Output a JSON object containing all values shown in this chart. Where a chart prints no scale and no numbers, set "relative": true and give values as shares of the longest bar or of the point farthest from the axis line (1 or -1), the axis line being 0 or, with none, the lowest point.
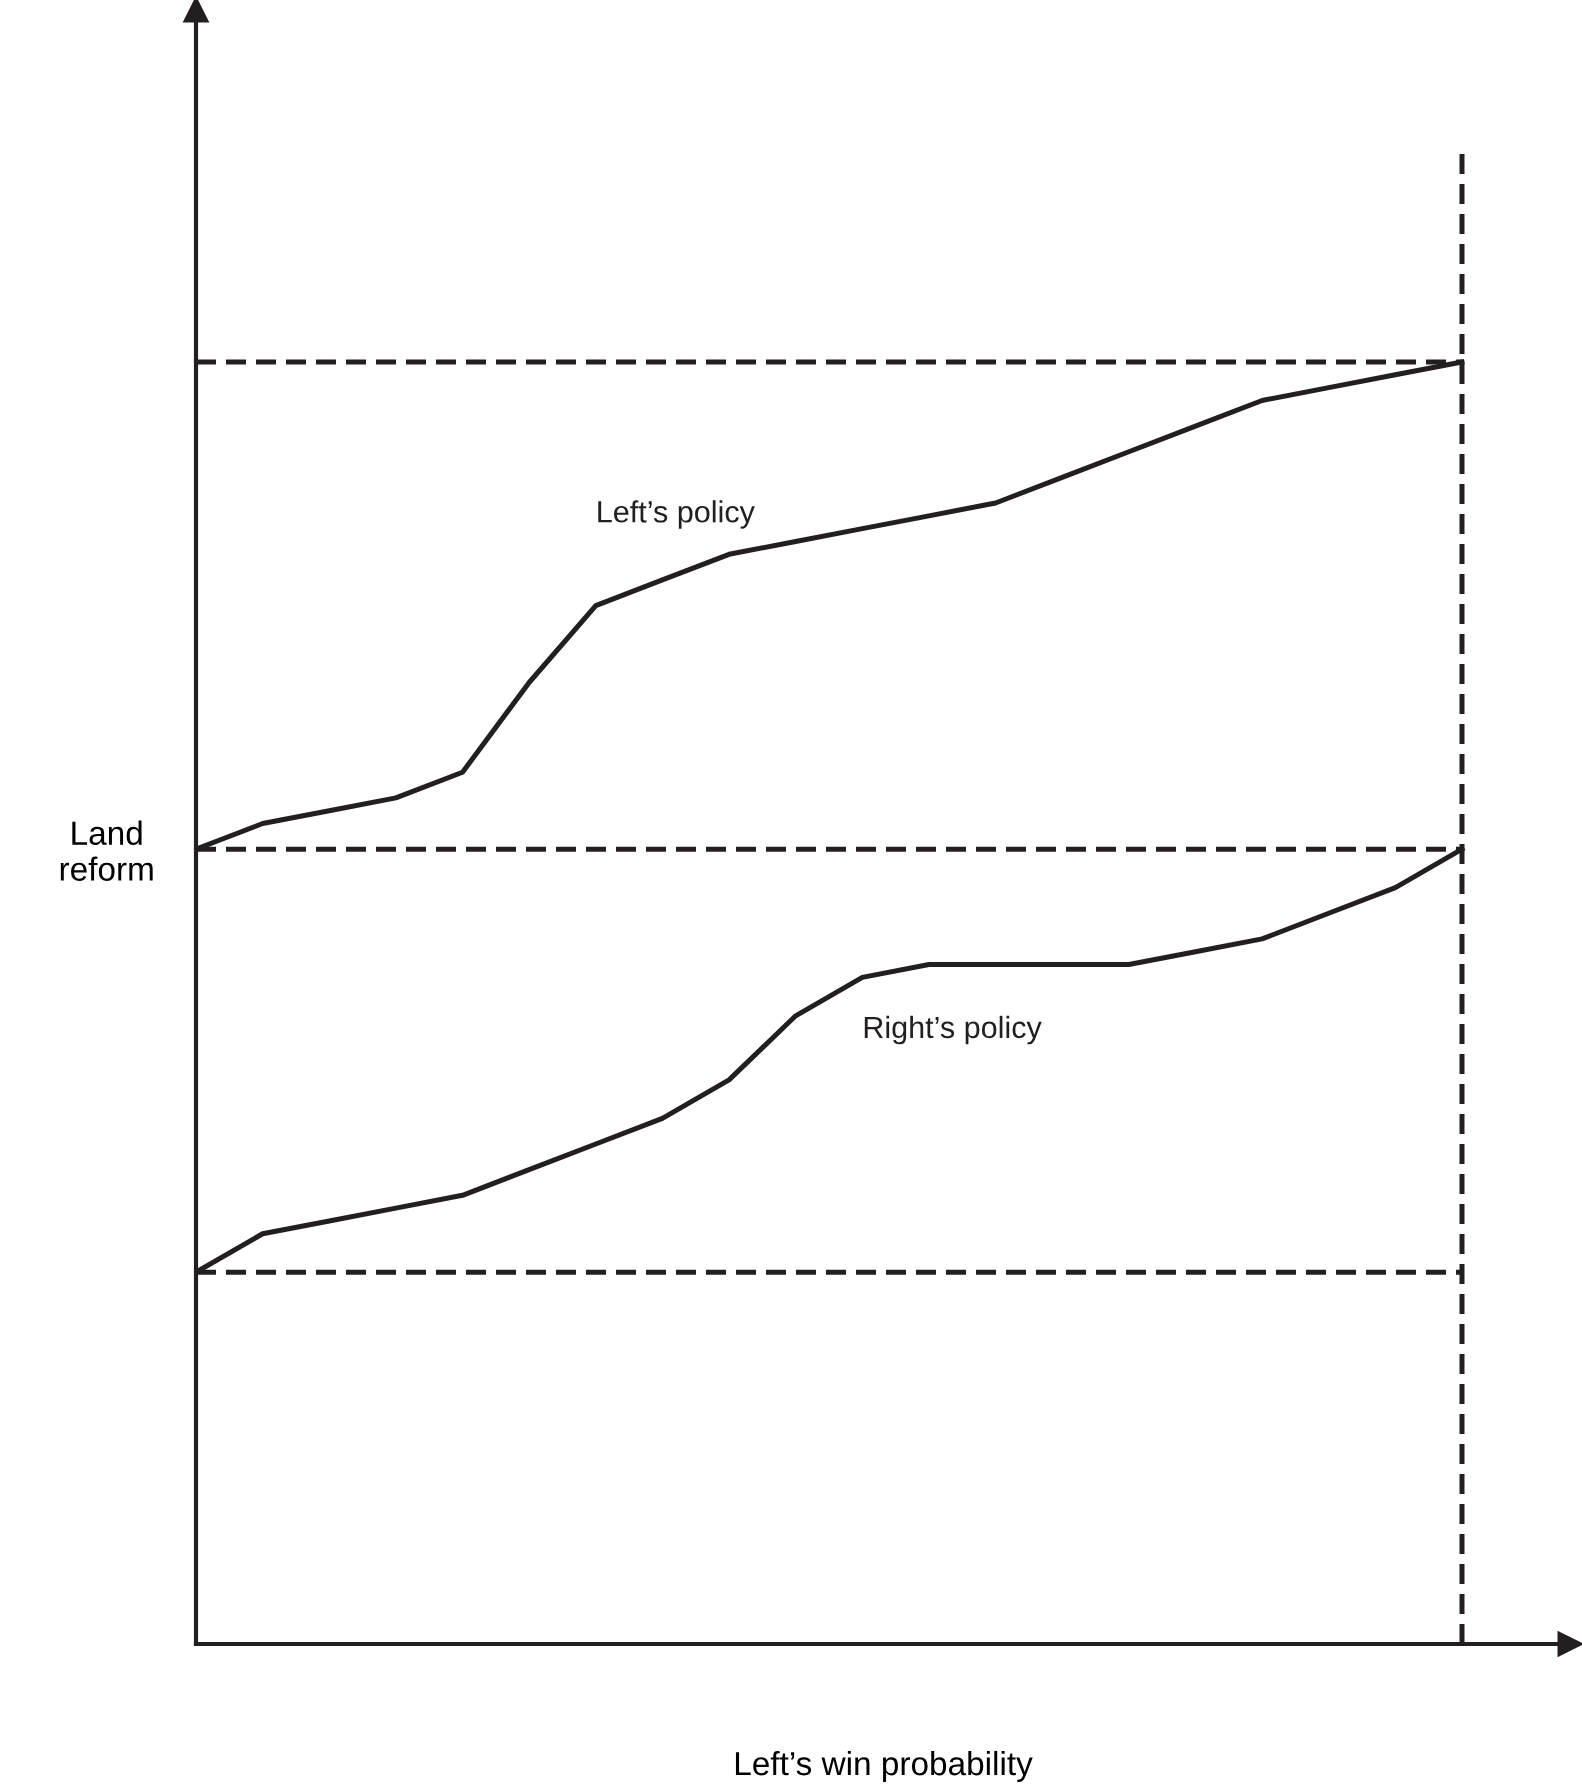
{
  "chart_data": {
    "type": "line",
    "relative": true,
    "xlabel": "Left’s win probability",
    "ylabel": "Land\nreform",
    "categories": [
      null,
      null,
      null,
      null,
      null,
      null,
      null,
      null,
      null,
      null,
      null,
      null,
      null,
      null,
      null,
      null,
      null,
      null,
      null,
      null
    ],
    "series": [
      {
        "name": "Left’s policy",
        "color": "#231f20",
        "values": [
          0.62,
          0.64,
          0.65,
          0.66,
          0.68,
          0.75,
          0.81,
          0.83,
          0.85,
          0.86,
          0.87,
          0.88,
          0.89,
          0.91,
          0.93,
          0.95,
          0.97,
          0.98,
          0.99,
          1
        ]
      },
      {
        "name": "Right’s policy",
        "color": "#231f20",
        "values": [
          0.29,
          0.32,
          0.33,
          0.34,
          0.35,
          0.37,
          0.39,
          0.41,
          0.44,
          0.49,
          0.52,
          0.53,
          0.53,
          0.53,
          0.53,
          0.54,
          0.55,
          0.57,
          0.59,
          0.62
        ]
      }
    ],
    "ref_lines": [
      {
        "axis": "y",
        "value": 1,
        "color": "#231f20",
        "line_style": "dashed"
      },
      {
        "axis": "y",
        "value": 0.62,
        "color": "#231f20",
        "line_style": "dashed"
      },
      {
        "axis": "y",
        "value": 0.29,
        "color": "#231f20",
        "line_style": "dashed"
      }
    ],
    "grid": false,
    "legend": false,
    "marker": "none",
    "line_style": "solid"
  }
}
